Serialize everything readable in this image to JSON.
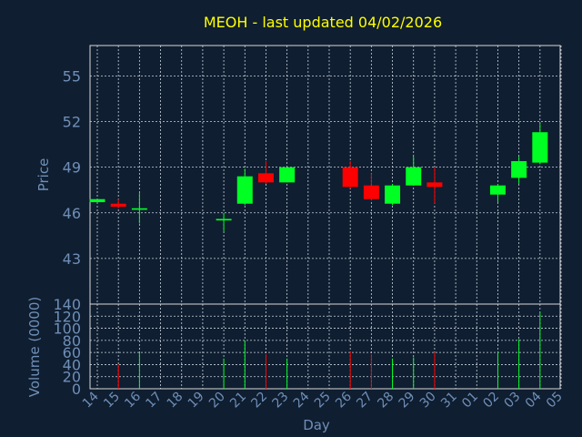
{
  "chart_data": {
    "type": "candlestick",
    "title": "MEOH - last updated 04/02/2026",
    "xlabel": "Day",
    "price_panel": {
      "ylabel": "Price",
      "ylim": [
        40,
        57
      ],
      "yticks": [
        43,
        46,
        49,
        52,
        55
      ],
      "grid": true
    },
    "volume_panel": {
      "ylabel": "Volume (0000)",
      "ylim": [
        0,
        140
      ],
      "yticks": [
        0,
        20,
        40,
        60,
        80,
        100,
        120,
        140
      ],
      "grid": true
    },
    "x_ticks": [
      "14",
      "15",
      "16",
      "17",
      "18",
      "19",
      "20",
      "21",
      "22",
      "23",
      "24",
      "25",
      "26",
      "27",
      "28",
      "29",
      "30",
      "31",
      "01",
      "02",
      "03",
      "04",
      "05"
    ],
    "colors": {
      "up": "#00ff22",
      "down": "#ff0000",
      "background": "#0f1e30"
    },
    "candles": [
      {
        "day": "14",
        "open": 46.7,
        "close": 46.9,
        "high": 46.9,
        "low": 46.7,
        "volume": 0
      },
      {
        "day": "15",
        "open": 46.6,
        "close": 46.4,
        "high": 46.9,
        "low": 46.3,
        "volume": 40
      },
      {
        "day": "16",
        "open": 46.2,
        "close": 46.3,
        "high": 47.3,
        "low": 45.3,
        "volume": 60
      },
      {
        "day": "20",
        "open": 45.5,
        "close": 45.6,
        "high": 46.0,
        "low": 44.8,
        "volume": 50
      },
      {
        "day": "21",
        "open": 46.6,
        "close": 48.4,
        "high": 48.9,
        "low": 46.5,
        "volume": 80
      },
      {
        "day": "22",
        "open": 48.6,
        "close": 48.0,
        "high": 49.4,
        "low": 47.9,
        "volume": 57
      },
      {
        "day": "23",
        "open": 48.0,
        "close": 49.0,
        "high": 49.0,
        "low": 48.0,
        "volume": 50
      },
      {
        "day": "26",
        "open": 49.0,
        "close": 47.7,
        "high": 49.4,
        "low": 47.6,
        "volume": 62
      },
      {
        "day": "27",
        "open": 47.8,
        "close": 46.9,
        "high": 48.6,
        "low": 46.8,
        "volume": 57
      },
      {
        "day": "28",
        "open": 46.6,
        "close": 47.8,
        "high": 47.9,
        "low": 46.5,
        "volume": 50
      },
      {
        "day": "29",
        "open": 47.8,
        "close": 49.0,
        "high": 49.7,
        "low": 47.8,
        "volume": 52
      },
      {
        "day": "30",
        "open": 48.0,
        "close": 47.7,
        "high": 49.0,
        "low": 46.6,
        "volume": 60
      },
      {
        "day": "02",
        "open": 47.2,
        "close": 47.8,
        "high": 47.9,
        "low": 46.7,
        "volume": 62
      },
      {
        "day": "03",
        "open": 48.3,
        "close": 49.4,
        "high": 49.7,
        "low": 47.9,
        "volume": 82
      },
      {
        "day": "04",
        "open": 49.3,
        "close": 51.3,
        "high": 51.9,
        "low": 49.2,
        "volume": 127
      }
    ]
  }
}
